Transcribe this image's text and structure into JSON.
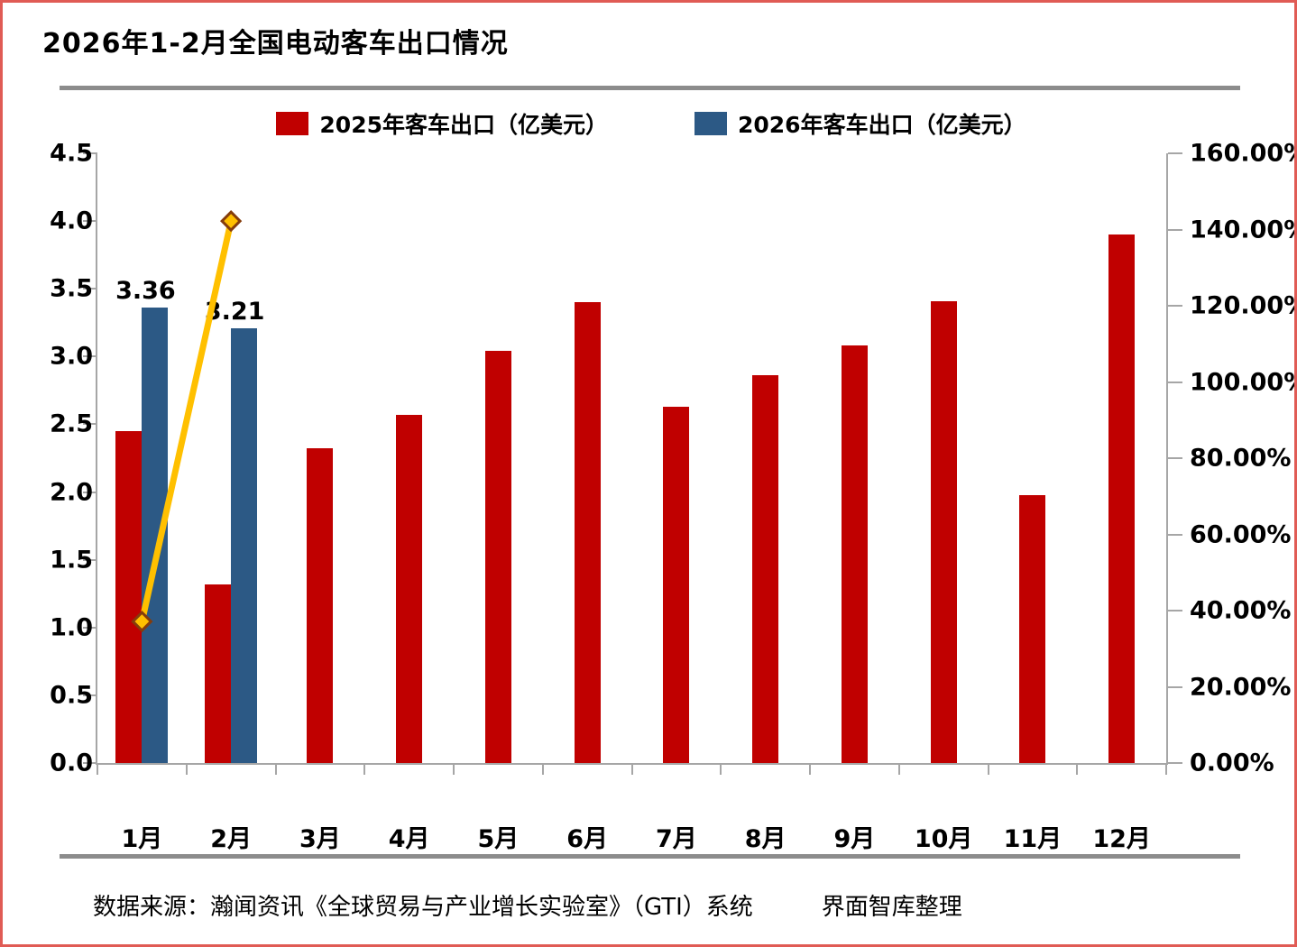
{
  "page": {
    "title": "2026年1-2月全国电动客车出口情况",
    "source_left": "数据来源：瀚闻资讯《全球贸易与产业增长实验室》（GTI）系统",
    "source_right": "界面智库整理"
  },
  "colors": {
    "bar_2025": "#C00000",
    "bar_2026": "#2C5985",
    "growth_line": "#FFC000",
    "marker_border": "#843C0C",
    "axis": "#A6A6A6",
    "separator": "#8C8C8C",
    "frame_border": "#E05B55",
    "text": "#000000"
  },
  "legend": {
    "items": [
      {
        "label": "2025年客车出口（亿美元）",
        "swatch_color": "#C00000"
      },
      {
        "label": "2026年客车出口（亿美元）",
        "swatch_color": "#2C5985"
      }
    ]
  },
  "chart_data": {
    "type": "bar",
    "subtype": "grouped bars with secondary-axis growth line",
    "categories": [
      "1月",
      "2月",
      "3月",
      "4月",
      "5月",
      "6月",
      "7月",
      "8月",
      "9月",
      "10月",
      "11月",
      "12月"
    ],
    "series": [
      {
        "name": "2025年客车出口（亿美元）",
        "type": "bar",
        "axis": "left",
        "color": "#C00000",
        "values": [
          2.45,
          1.32,
          2.32,
          2.57,
          3.04,
          3.4,
          2.63,
          2.86,
          3.08,
          3.41,
          1.98,
          3.9
        ]
      },
      {
        "name": "2026年客车出口（亿美元）",
        "type": "bar",
        "axis": "left",
        "color": "#2C5985",
        "values": [
          3.36,
          3.21,
          null,
          null,
          null,
          null,
          null,
          null,
          null,
          null,
          null,
          null
        ],
        "data_labels": [
          "3.36",
          "3.21"
        ]
      },
      {
        "name": "growth-line",
        "type": "line",
        "axis": "right",
        "color": "#FFC000",
        "marker": "diamond",
        "values_percent": [
          37.14,
          142.22,
          null,
          null,
          null,
          null,
          null,
          null,
          null,
          null,
          null,
          null
        ]
      }
    ],
    "left_axis": {
      "min": 0,
      "max": 4.5,
      "step": 0.5,
      "ticks": [
        "4.5",
        "4.0",
        "3.5",
        "3.0",
        "2.5",
        "2.0",
        "1.5",
        "1.0",
        "0.5",
        "0.0"
      ]
    },
    "right_axis": {
      "min": 0,
      "max": 160,
      "step": 20,
      "ticks": [
        "160.00%",
        "140.00%",
        "120.00%",
        "100.00%",
        "80.00%",
        "60.00%",
        "40.00%",
        "20.00%",
        "0.00%"
      ]
    },
    "grid": false,
    "legend_position": "top"
  }
}
